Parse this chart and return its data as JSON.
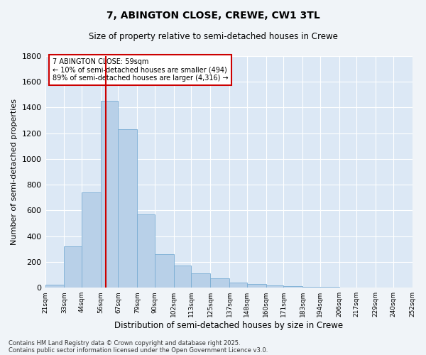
{
  "title": "7, ABINGTON CLOSE, CREWE, CW1 3TL",
  "subtitle": "Size of property relative to semi-detached houses in Crewe",
  "xlabel": "Distribution of semi-detached houses by size in Crewe",
  "ylabel": "Number of semi-detached properties",
  "footnote1": "Contains HM Land Registry data © Crown copyright and database right 2025.",
  "footnote2": "Contains public sector information licensed under the Open Government Licence v3.0.",
  "annotation_line1": "7 ABINGTON CLOSE: 59sqm",
  "annotation_line2": "← 10% of semi-detached houses are smaller (494)",
  "annotation_line3": "89% of semi-detached houses are larger (4,316) →",
  "property_size": 59,
  "bar_left_edges": [
    21,
    33,
    44,
    56,
    67,
    79,
    90,
    102,
    113,
    125,
    137,
    148,
    160,
    171,
    183,
    194,
    206,
    217,
    229,
    240
  ],
  "bar_widths": [
    12,
    11,
    12,
    11,
    12,
    11,
    12,
    11,
    12,
    12,
    11,
    12,
    11,
    12,
    11,
    12,
    11,
    12,
    11,
    12
  ],
  "bar_heights": [
    25,
    320,
    740,
    1450,
    1230,
    570,
    260,
    170,
    110,
    75,
    42,
    28,
    18,
    10,
    5,
    4,
    2,
    2,
    1,
    1
  ],
  "bar_color": "#b8d0e8",
  "bar_edge_color": "#7aadd4",
  "marker_color": "#cc0000",
  "bg_color": "#dce8f5",
  "grid_color": "#ffffff",
  "fig_bg_color": "#f0f4f8",
  "ylim": [
    0,
    1800
  ],
  "yticks": [
    0,
    200,
    400,
    600,
    800,
    1000,
    1200,
    1400,
    1600,
    1800
  ],
  "xtick_labels": [
    "21sqm",
    "33sqm",
    "44sqm",
    "56sqm",
    "67sqm",
    "79sqm",
    "90sqm",
    "102sqm",
    "113sqm",
    "125sqm",
    "137sqm",
    "148sqm",
    "160sqm",
    "171sqm",
    "183sqm",
    "194sqm",
    "206sqm",
    "217sqm",
    "229sqm",
    "240sqm",
    "252sqm"
  ]
}
